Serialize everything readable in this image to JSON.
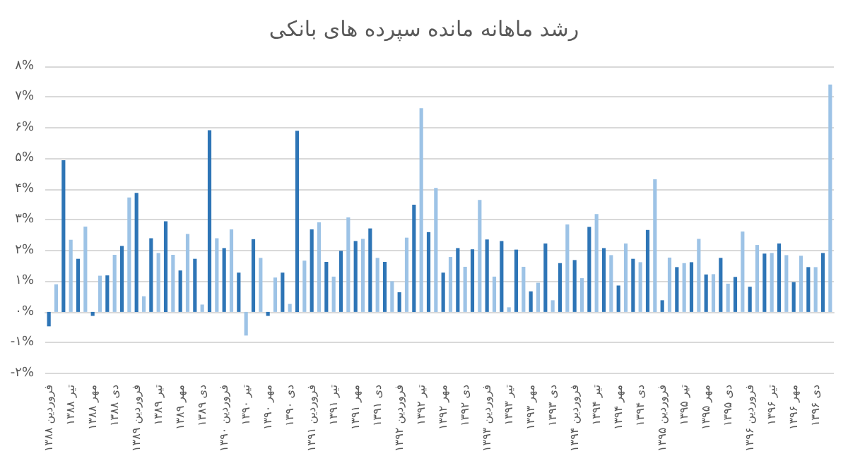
{
  "chart_data": {
    "type": "bar",
    "title": "رشد ماهانه مانده سپرده های بانکی",
    "categories": [
      "فروردین ۱۳۸۸",
      null,
      null,
      "تیر ۱۳۸۸",
      null,
      null,
      "مهر ۱۳۸۸",
      null,
      null,
      "دی ۱۳۸۸",
      null,
      null,
      "فروردین ۱۳۸۹",
      null,
      null,
      "تیر ۱۳۸۹",
      null,
      null,
      "مهر ۱۳۸۹",
      null,
      null,
      "دی ۱۳۸۹",
      null,
      null,
      "فروردین ۱۳۹۰",
      null,
      null,
      "تیر ۱۳۹۰",
      null,
      null,
      "مهر ۱۳۹۰",
      null,
      null,
      "دی ۱۳۹۰",
      null,
      null,
      "فروردین ۱۳۹۱",
      null,
      null,
      "تیر ۱۳۹۱",
      null,
      null,
      "مهر ۱۳۹۱",
      null,
      null,
      "دی ۱۳۹۱",
      null,
      null,
      "فروردین ۱۳۹۲",
      null,
      null,
      "تیر ۱۳۹۲",
      null,
      null,
      "مهر ۱۳۹۲",
      null,
      null,
      "دی ۱۳۹۲",
      null,
      null,
      "فروردین ۱۳۹۳",
      null,
      null,
      "تیر ۱۳۹۳",
      null,
      null,
      "مهر ۱۳۹۳",
      null,
      null,
      "دی ۱۳۹۳",
      null,
      null,
      "فروردین ۱۳۹۴",
      null,
      null,
      "تیر ۱۳۹۴",
      null,
      null,
      "مهر ۱۳۹۴",
      null,
      null,
      "دی ۱۳۹۴",
      null,
      null,
      "فروردین ۱۳۹۵",
      null,
      null,
      "تیر ۱۳۹۵",
      null,
      null,
      "مهر ۱۳۹۵",
      null,
      null,
      "دی ۱۳۹۵",
      null,
      null,
      "فروردین ۱۳۹۶",
      null,
      null,
      "تیر ۱۳۹۶",
      null,
      null,
      "مهر ۱۳۹۶",
      null,
      null,
      "دی ۱۳۹۶",
      null,
      null
    ],
    "values": [
      -0.47,
      0.9,
      4.94,
      2.35,
      1.73,
      2.78,
      -0.13,
      1.18,
      1.19,
      1.86,
      2.15,
      3.73,
      3.88,
      0.51,
      2.4,
      1.92,
      2.95,
      1.86,
      1.35,
      2.54,
      1.73,
      0.24,
      5.92,
      2.4,
      2.08,
      2.69,
      1.28,
      -0.77,
      2.37,
      1.76,
      -0.13,
      1.12,
      1.28,
      0.26,
      5.9,
      1.67,
      2.69,
      2.92,
      1.63,
      1.15,
      1.99,
      3.08,
      2.31,
      2.38,
      2.72,
      1.76,
      1.63,
      1.0,
      0.64,
      2.42,
      3.49,
      6.64,
      2.6,
      4.04,
      1.28,
      1.79,
      2.08,
      1.47,
      2.04,
      3.65,
      2.36,
      1.15,
      2.31,
      0.15,
      2.03,
      1.47,
      0.67,
      0.95,
      2.23,
      0.38,
      1.59,
      2.85,
      1.69,
      1.1,
      2.77,
      3.19,
      2.08,
      1.85,
      0.86,
      2.23,
      1.73,
      1.62,
      2.67,
      4.32,
      0.38,
      1.77,
      1.46,
      1.59,
      1.62,
      2.38,
      1.22,
      1.23,
      1.76,
      0.92,
      1.14,
      2.62,
      0.82,
      2.18,
      1.9,
      1.92,
      2.23,
      1.85,
      0.97,
      1.83,
      1.46,
      1.46,
      1.92,
      7.41
    ],
    "colors": [
      "#2e75b6",
      "#9dc3e6",
      "#2e75b6",
      "#9dc3e6",
      "#2e75b6",
      "#9dc3e6",
      "#2e75b6",
      "#9dc3e6",
      "#2e75b6",
      "#9dc3e6",
      "#2e75b6",
      "#9dc3e6",
      "#2e75b6",
      "#9dc3e6",
      "#2e75b6",
      "#9dc3e6",
      "#2e75b6",
      "#9dc3e6",
      "#2e75b6",
      "#9dc3e6",
      "#2e75b6",
      "#9dc3e6",
      "#2e75b6",
      "#9dc3e6",
      "#2e75b6",
      "#9dc3e6",
      "#2e75b6",
      "#9dc3e6",
      "#2e75b6",
      "#9dc3e6",
      "#2e75b6",
      "#9dc3e6",
      "#2e75b6",
      "#9dc3e6",
      "#2e75b6",
      "#9dc3e6",
      "#2e75b6",
      "#9dc3e6",
      "#2e75b6",
      "#9dc3e6",
      "#2e75b6",
      "#9dc3e6",
      "#2e75b6",
      "#9dc3e6",
      "#2e75b6",
      "#9dc3e6",
      "#2e75b6",
      "#9dc3e6",
      "#2e75b6",
      "#9dc3e6",
      "#2e75b6",
      "#9dc3e6",
      "#2e75b6",
      "#9dc3e6",
      "#2e75b6",
      "#9dc3e6",
      "#2e75b6",
      "#9dc3e6",
      "#2e75b6",
      "#9dc3e6",
      "#2e75b6",
      "#9dc3e6",
      "#2e75b6",
      "#9dc3e6",
      "#2e75b6",
      "#9dc3e6",
      "#2e75b6",
      "#9dc3e6",
      "#2e75b6",
      "#9dc3e6",
      "#2e75b6",
      "#9dc3e6",
      "#2e75b6",
      "#9dc3e6",
      "#2e75b6",
      "#9dc3e6",
      "#2e75b6",
      "#9dc3e6",
      "#2e75b6",
      "#9dc3e6",
      "#2e75b6",
      "#9dc3e6",
      "#2e75b6",
      "#9dc3e6",
      "#2e75b6",
      "#9dc3e6",
      "#2e75b6",
      "#9dc3e6",
      "#2e75b6",
      "#9dc3e6",
      "#2e75b6",
      "#9dc3e6",
      "#2e75b6",
      "#9dc3e6",
      "#2e75b6",
      "#9dc3e6",
      "#2e75b6",
      "#9dc3e6",
      "#2e75b6",
      "#9dc3e6",
      "#2e75b6",
      "#9dc3e6",
      "#2e75b6",
      "#9dc3e6",
      "#2e75b6",
      "#9dc3e6",
      "#2e75b6",
      "#9dc3e6"
    ],
    "ylim": [
      -2,
      8
    ],
    "yticks": [
      {
        "value": -2,
        "label": "-۲%"
      },
      {
        "value": -1,
        "label": "-۱%"
      },
      {
        "value": 0,
        "label": "۰%"
      },
      {
        "value": 1,
        "label": "۱%"
      },
      {
        "value": 2,
        "label": "۲%"
      },
      {
        "value": 3,
        "label": "۳%"
      },
      {
        "value": 4,
        "label": "۴%"
      },
      {
        "value": 5,
        "label": "۵%"
      },
      {
        "value": 6,
        "label": "۶%"
      },
      {
        "value": 7,
        "label": "۷%"
      },
      {
        "value": 8,
        "label": "۸%"
      }
    ],
    "grid": "y"
  }
}
